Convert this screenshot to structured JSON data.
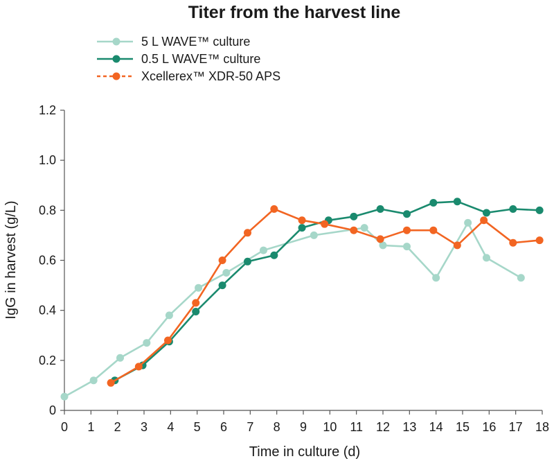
{
  "chart_data": {
    "type": "line",
    "title": "Titer from the harvest line",
    "xlabel": "Time in culture (d)",
    "ylabel": "IgG in harvest (g/L)",
    "xlim": [
      0,
      18
    ],
    "ylim": [
      0,
      1.2
    ],
    "xticks": [
      "0",
      "1",
      "2",
      "3",
      "4",
      "5",
      "6",
      "7",
      "8",
      "9",
      "10",
      "11",
      "12",
      "13",
      "14",
      "15",
      "16",
      "17",
      "18"
    ],
    "yticks": [
      "0",
      "0.2",
      "0.4",
      "0.6",
      "0.8",
      "1.0",
      "1.2"
    ],
    "grid": false,
    "legend_position": "top-left",
    "series": [
      {
        "name": "5 L WAVE™ culture",
        "color": "#a6d7c9",
        "dash": "solid",
        "points": [
          [
            0,
            0.055
          ],
          [
            1.1,
            0.12
          ],
          [
            2.1,
            0.21
          ],
          [
            3.1,
            0.27
          ],
          [
            3.95,
            0.38
          ],
          [
            5.05,
            0.49
          ],
          [
            6.1,
            0.55
          ],
          [
            7.5,
            0.64
          ],
          [
            9.4,
            0.7
          ],
          [
            11.3,
            0.73
          ],
          [
            12.0,
            0.66
          ],
          [
            12.9,
            0.655
          ],
          [
            14.0,
            0.53
          ],
          [
            15.2,
            0.75
          ],
          [
            15.9,
            0.61
          ],
          [
            17.2,
            0.53
          ]
        ]
      },
      {
        "name": "0.5 L WAVE™ culture",
        "color": "#1a8a6e",
        "dash": "solid",
        "points": [
          [
            1.9,
            0.12
          ],
          [
            2.95,
            0.18
          ],
          [
            3.95,
            0.275
          ],
          [
            4.95,
            0.395
          ],
          [
            5.95,
            0.5
          ],
          [
            6.9,
            0.595
          ],
          [
            7.9,
            0.62
          ],
          [
            8.95,
            0.73
          ],
          [
            9.95,
            0.76
          ],
          [
            10.9,
            0.775
          ],
          [
            11.9,
            0.805
          ],
          [
            12.9,
            0.785
          ],
          [
            13.9,
            0.83
          ],
          [
            14.8,
            0.835
          ],
          [
            15.9,
            0.79
          ],
          [
            16.9,
            0.805
          ],
          [
            17.9,
            0.8
          ]
        ]
      },
      {
        "name": "Xcellerex™ XDR-50 APS",
        "color": "#f26522",
        "dash": "dashed",
        "points": [
          [
            1.75,
            0.11
          ],
          [
            2.8,
            0.175
          ],
          [
            3.9,
            0.28
          ],
          [
            4.95,
            0.43
          ],
          [
            5.95,
            0.6
          ],
          [
            6.9,
            0.71
          ],
          [
            7.9,
            0.805
          ],
          [
            8.95,
            0.76
          ],
          [
            9.8,
            0.745
          ],
          [
            10.9,
            0.72
          ],
          [
            11.9,
            0.685
          ],
          [
            12.9,
            0.72
          ],
          [
            13.9,
            0.72
          ],
          [
            14.8,
            0.66
          ],
          [
            15.8,
            0.76
          ],
          [
            16.9,
            0.67
          ],
          [
            17.9,
            0.68
          ]
        ]
      }
    ]
  }
}
